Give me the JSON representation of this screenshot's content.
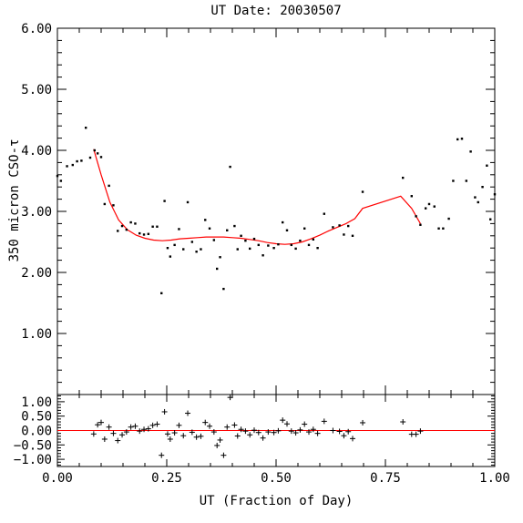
{
  "chart_data": [
    {
      "type": "scatter",
      "title": "UT Date: 20030507",
      "xlabel": "",
      "ylabel": "350 micron CSO-τ",
      "xlim": [
        0.0,
        1.0
      ],
      "ylim": [
        0.0,
        6.0
      ],
      "y_tick_labels": [
        "1.00",
        "2.00",
        "3.00",
        "4.00",
        "5.00",
        "6.00"
      ],
      "grid": false,
      "series": [
        {
          "marker": "dot",
          "color": "#000000",
          "points": [
            [
              0.0,
              3.58
            ],
            [
              0.008,
              3.5
            ],
            [
              0.022,
              3.74
            ],
            [
              0.035,
              3.76
            ],
            [
              0.045,
              3.82
            ],
            [
              0.055,
              3.83
            ],
            [
              0.065,
              4.37
            ],
            [
              0.075,
              3.88
            ],
            [
              0.085,
              4.0
            ],
            [
              0.092,
              3.95
            ],
            [
              0.1,
              3.89
            ],
            [
              0.108,
              3.12
            ],
            [
              0.118,
              3.42
            ],
            [
              0.128,
              3.1
            ],
            [
              0.138,
              2.68
            ],
            [
              0.148,
              2.76
            ],
            [
              0.158,
              2.7
            ],
            [
              0.168,
              2.82
            ],
            [
              0.178,
              2.8
            ],
            [
              0.188,
              2.64
            ],
            [
              0.198,
              2.62
            ],
            [
              0.208,
              2.63
            ],
            [
              0.218,
              2.75
            ],
            [
              0.228,
              2.75
            ],
            [
              0.238,
              1.66
            ],
            [
              0.245,
              3.17
            ],
            [
              0.252,
              2.4
            ],
            [
              0.258,
              2.26
            ],
            [
              0.268,
              2.45
            ],
            [
              0.278,
              2.71
            ],
            [
              0.288,
              2.38
            ],
            [
              0.298,
              3.15
            ],
            [
              0.308,
              2.5
            ],
            [
              0.318,
              2.34
            ],
            [
              0.328,
              2.38
            ],
            [
              0.338,
              2.86
            ],
            [
              0.348,
              2.72
            ],
            [
              0.358,
              2.53
            ],
            [
              0.365,
              2.06
            ],
            [
              0.372,
              2.25
            ],
            [
              0.38,
              1.73
            ],
            [
              0.388,
              2.69
            ],
            [
              0.395,
              3.73
            ],
            [
              0.405,
              2.76
            ],
            [
              0.412,
              2.38
            ],
            [
              0.42,
              2.6
            ],
            [
              0.43,
              2.52
            ],
            [
              0.44,
              2.39
            ],
            [
              0.45,
              2.55
            ],
            [
              0.46,
              2.45
            ],
            [
              0.47,
              2.28
            ],
            [
              0.482,
              2.44
            ],
            [
              0.495,
              2.4
            ],
            [
              0.505,
              2.46
            ],
            [
              0.515,
              2.82
            ],
            [
              0.525,
              2.69
            ],
            [
              0.535,
              2.45
            ],
            [
              0.545,
              2.39
            ],
            [
              0.555,
              2.52
            ],
            [
              0.565,
              2.72
            ],
            [
              0.575,
              2.45
            ],
            [
              0.585,
              2.54
            ],
            [
              0.595,
              2.4
            ],
            [
              0.61,
              2.96
            ],
            [
              0.63,
              2.74
            ],
            [
              0.645,
              2.77
            ],
            [
              0.655,
              2.62
            ],
            [
              0.665,
              2.76
            ],
            [
              0.675,
              2.6
            ],
            [
              0.698,
              3.32
            ],
            [
              0.79,
              3.55
            ],
            [
              0.81,
              3.25
            ],
            [
              0.82,
              2.92
            ],
            [
              0.83,
              2.78
            ],
            [
              0.842,
              3.05
            ],
            [
              0.85,
              3.12
            ],
            [
              0.862,
              3.08
            ],
            [
              0.872,
              2.72
            ],
            [
              0.882,
              2.72
            ],
            [
              0.895,
              2.88
            ],
            [
              0.905,
              3.5
            ],
            [
              0.915,
              4.18
            ],
            [
              0.925,
              4.19
            ],
            [
              0.935,
              3.5
            ],
            [
              0.945,
              3.98
            ],
            [
              0.955,
              3.23
            ],
            [
              0.962,
              3.15
            ],
            [
              0.972,
              3.4
            ],
            [
              0.982,
              3.75
            ],
            [
              0.99,
              2.87
            ],
            [
              1.0,
              3.28
            ]
          ]
        },
        {
          "marker": "line",
          "color": "#ff0000",
          "points": [
            [
              0.083,
              4.02
            ],
            [
              0.1,
              3.6
            ],
            [
              0.12,
              3.15
            ],
            [
              0.14,
              2.86
            ],
            [
              0.16,
              2.7
            ],
            [
              0.18,
              2.61
            ],
            [
              0.2,
              2.56
            ],
            [
              0.22,
              2.53
            ],
            [
              0.24,
              2.52
            ],
            [
              0.26,
              2.53
            ],
            [
              0.28,
              2.55
            ],
            [
              0.3,
              2.56
            ],
            [
              0.32,
              2.57
            ],
            [
              0.34,
              2.58
            ],
            [
              0.36,
              2.58
            ],
            [
              0.38,
              2.58
            ],
            [
              0.4,
              2.57
            ],
            [
              0.42,
              2.56
            ],
            [
              0.44,
              2.54
            ],
            [
              0.46,
              2.52
            ],
            [
              0.48,
              2.49
            ],
            [
              0.5,
              2.47
            ],
            [
              0.52,
              2.46
            ],
            [
              0.54,
              2.47
            ],
            [
              0.56,
              2.5
            ],
            [
              0.58,
              2.55
            ],
            [
              0.6,
              2.61
            ],
            [
              0.62,
              2.68
            ],
            [
              0.64,
              2.74
            ],
            [
              0.66,
              2.8
            ],
            [
              0.68,
              2.88
            ],
            [
              0.698,
              3.05
            ],
            [
              0.785,
              3.25
            ],
            [
              0.81,
              3.05
            ],
            [
              0.83,
              2.8
            ]
          ]
        }
      ]
    },
    {
      "type": "scatter",
      "xlabel": "UT (Fraction of Day)",
      "ylabel": "",
      "xlim": [
        0.0,
        1.0
      ],
      "ylim": [
        -1.25,
        1.25
      ],
      "x_tick_labels": [
        "0.00",
        "0.25",
        "0.50",
        "0.75",
        "1.00"
      ],
      "y_tick_labels": [
        "1.00",
        "0.50",
        "0.00",
        "−0.50",
        "−1.00"
      ],
      "grid": false,
      "zero_line_color": "#ff0000",
      "series": [
        {
          "marker": "plus",
          "color": "#000000",
          "points": [
            [
              0.083,
              -0.12
            ],
            [
              0.092,
              0.2
            ],
            [
              0.1,
              0.28
            ],
            [
              0.108,
              -0.3
            ],
            [
              0.118,
              0.12
            ],
            [
              0.128,
              -0.1
            ],
            [
              0.138,
              -0.35
            ],
            [
              0.148,
              -0.15
            ],
            [
              0.158,
              -0.05
            ],
            [
              0.168,
              0.12
            ],
            [
              0.178,
              0.15
            ],
            [
              0.188,
              -0.02
            ],
            [
              0.198,
              0.04
            ],
            [
              0.208,
              0.06
            ],
            [
              0.218,
              0.18
            ],
            [
              0.228,
              0.22
            ],
            [
              0.238,
              -0.86
            ],
            [
              0.245,
              0.65
            ],
            [
              0.252,
              -0.12
            ],
            [
              0.258,
              -0.3
            ],
            [
              0.268,
              -0.08
            ],
            [
              0.278,
              0.18
            ],
            [
              0.288,
              -0.18
            ],
            [
              0.298,
              0.6
            ],
            [
              0.308,
              -0.06
            ],
            [
              0.318,
              -0.23
            ],
            [
              0.328,
              -0.2
            ],
            [
              0.338,
              0.28
            ],
            [
              0.348,
              0.15
            ],
            [
              0.358,
              -0.05
            ],
            [
              0.365,
              -0.52
            ],
            [
              0.372,
              -0.33
            ],
            [
              0.38,
              -0.86
            ],
            [
              0.388,
              0.12
            ],
            [
              0.395,
              1.15
            ],
            [
              0.405,
              0.19
            ],
            [
              0.412,
              -0.19
            ],
            [
              0.42,
              0.04
            ],
            [
              0.43,
              -0.02
            ],
            [
              0.44,
              -0.15
            ],
            [
              0.45,
              0.01
            ],
            [
              0.46,
              -0.07
            ],
            [
              0.47,
              -0.26
            ],
            [
              0.482,
              -0.05
            ],
            [
              0.495,
              -0.07
            ],
            [
              0.505,
              -0.01
            ],
            [
              0.515,
              0.36
            ],
            [
              0.525,
              0.23
            ],
            [
              0.535,
              -0.02
            ],
            [
              0.545,
              -0.08
            ],
            [
              0.555,
              0.02
            ],
            [
              0.565,
              0.22
            ],
            [
              0.575,
              -0.05
            ],
            [
              0.585,
              0.04
            ],
            [
              0.595,
              -0.1
            ],
            [
              0.61,
              0.32
            ],
            [
              0.63,
              0.0
            ],
            [
              0.645,
              -0.03
            ],
            [
              0.655,
              -0.18
            ],
            [
              0.665,
              -0.04
            ],
            [
              0.675,
              -0.28
            ],
            [
              0.698,
              0.27
            ],
            [
              0.79,
              0.3
            ],
            [
              0.81,
              -0.13
            ],
            [
              0.82,
              -0.13
            ],
            [
              0.83,
              -0.02
            ]
          ]
        }
      ]
    }
  ]
}
